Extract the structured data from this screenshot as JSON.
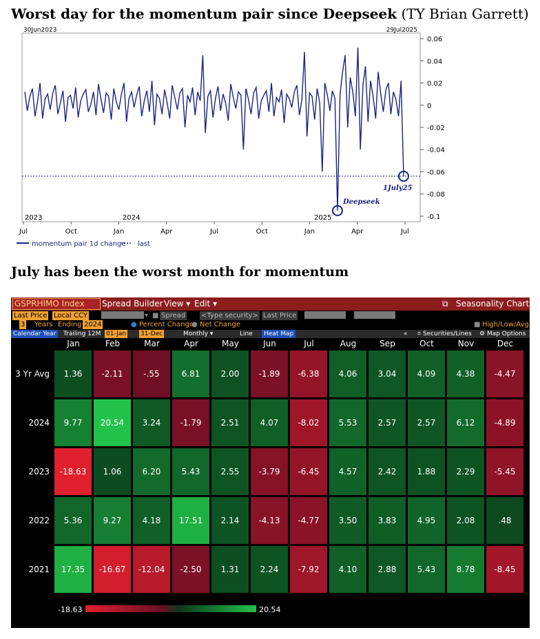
{
  "line_section": {
    "title_bold": "Worst day for the momentum pair since Deepseek",
    "title_rest": "(TY Brian Garrett)",
    "start_date": "30Jun2023",
    "end_date": "29Jul2025",
    "annotation_deepseek": "Deepseek",
    "annotation_july": "1July25",
    "legend_series": "momentum pair 1d change",
    "legend_last": "last",
    "series_color": "#1a237e"
  },
  "chart_data": {
    "type": "line",
    "x_tick_labels": [
      "Jul",
      "Oct",
      "Jan",
      "Apr",
      "Jul",
      "Oct",
      "Jan",
      "Apr",
      "Jul"
    ],
    "year_labels": [
      "2023",
      "2024",
      "2025"
    ],
    "y_tick_labels": [
      "0.06",
      "0.04",
      "0.02",
      "0",
      "-0.02",
      "-0.04",
      "-0.06",
      "-0.08",
      "-0.1"
    ],
    "ylim": [
      -0.105,
      0.065
    ],
    "last_value": -0.064,
    "series": [
      {
        "name": "momentum pair 1d change",
        "values": [
          0.012,
          -0.005,
          0.008,
          0.015,
          -0.01,
          0.003,
          0.02,
          -0.012,
          0.006,
          0.01,
          -0.004,
          0.011,
          0.018,
          -0.008,
          0.002,
          0.013,
          -0.015,
          0.007,
          0.009,
          -0.003,
          0.016,
          -0.011,
          0.004,
          0.01,
          0.014,
          -0.006,
          0.001,
          0.012,
          -0.009,
          0.019,
          0.005,
          -0.007,
          0.011,
          0.008,
          -0.013,
          0.015,
          0.003,
          -0.004,
          0.01,
          0.02,
          -0.015,
          0.006,
          0.012,
          -0.002,
          0.009,
          0.017,
          -0.01,
          0.004,
          0.013,
          -0.006,
          0.022,
          -0.018,
          0.01,
          0.006,
          -0.008,
          0.014,
          0.002,
          -0.012,
          0.018,
          0.007,
          -0.004,
          0.011,
          0.015,
          -0.02,
          0.009,
          0.003,
          0.016,
          -0.009,
          0.012,
          0.004,
          0.045,
          -0.025,
          0.008,
          0.013,
          -0.011,
          0.006,
          0.017,
          -0.005,
          0.01,
          0.002,
          -0.014,
          0.019,
          0.007,
          -0.003,
          0.012,
          0.009,
          -0.04,
          0.015,
          0.005,
          -0.008,
          0.011,
          0.016,
          -0.012,
          0.004,
          0.009,
          0.013,
          -0.006,
          0.02,
          -0.01,
          0.007,
          0.003,
          0.014,
          -0.016,
          0.01,
          0.006,
          -0.002,
          0.012,
          0.018,
          -0.009,
          0.005,
          0.048,
          -0.028,
          0.011,
          0.008,
          -0.013,
          0.015,
          0.002,
          -0.06,
          0.02,
          0.009,
          -0.005,
          0.013,
          0.006,
          -0.095,
          0.01,
          0.03,
          0.045,
          -0.02,
          0.025,
          0.012,
          -0.01,
          0.052,
          -0.04,
          0.018,
          0.035,
          -0.015,
          0.022,
          0.008,
          -0.012,
          0.03,
          0.01,
          -0.006,
          0.014,
          0.02,
          -0.008,
          0.012,
          0.005,
          -0.01,
          0.022,
          -0.064
        ]
      }
    ]
  },
  "heatmap": {
    "ticker": "GSPRHIMO Index",
    "menu": [
      "Spread Builder",
      "View",
      "Edit"
    ],
    "chart_name": "Seasonality Chart",
    "row2": {
      "field1": "Last Price",
      "field2": "Local CCY",
      "spread_label": "Spread",
      "type_security": "<Type security>",
      "field3": "Last Price"
    },
    "row3": {
      "years_value": "3",
      "years_label": "Years",
      "ending_label": "Ending",
      "ending_value": "2024",
      "percent_change": "Percent Change",
      "net_change": "Net Change",
      "high_low_avg": "High/Low/Avg"
    },
    "row4": {
      "calendar_year": "Calendar Year",
      "trailing": "Trailing 12M",
      "from_date": "01-Jan",
      "to_date": "31-Dec",
      "freq": "Monthly",
      "line": "Line",
      "heat_map": "Heat Map",
      "collapse": "«",
      "securities_lines": "Securities/Lines",
      "map_options": "Map Options"
    },
    "months": [
      "Jan",
      "Feb",
      "Mar",
      "Apr",
      "May",
      "Jun",
      "Jul",
      "Aug",
      "Sep",
      "Oct",
      "Nov",
      "Dec"
    ],
    "rows": [
      {
        "label": "3 Yr Avg",
        "values": [
          "1.36",
          "-2.11",
          "-.55",
          "6.81",
          "2.00",
          "-1.89",
          "-6.38",
          "4.06",
          "3.04",
          "4.09",
          "4.38",
          "-4.47"
        ]
      },
      {
        "label": "2024",
        "values": [
          "9.77",
          "20.54",
          "3.24",
          "-1.79",
          "2.51",
          "4.07",
          "-8.02",
          "5.53",
          "2.57",
          "2.57",
          "6.12",
          "-4.89"
        ]
      },
      {
        "label": "2023",
        "values": [
          "-18.63",
          "1.06",
          "6.20",
          "5.43",
          "2.55",
          "-3.79",
          "-6.45",
          "4.57",
          "2.42",
          "1.88",
          "2.29",
          "-5.45"
        ]
      },
      {
        "label": "2022",
        "values": [
          "5.36",
          "9.27",
          "4.18",
          "17.51",
          "2.14",
          "-4.13",
          "-4.77",
          "3.50",
          "3.83",
          "4.95",
          "2.08",
          ".48"
        ]
      },
      {
        "label": "2021",
        "values": [
          "17.35",
          "-16.67",
          "-12.04",
          "-2.50",
          "1.31",
          "2.24",
          "-7.92",
          "4.10",
          "2.88",
          "5.43",
          "8.78",
          "-8.45"
        ]
      }
    ],
    "scale_min": "-18.63",
    "scale_max": "20.54"
  },
  "section2_title": "July has been the worst month for momentum"
}
